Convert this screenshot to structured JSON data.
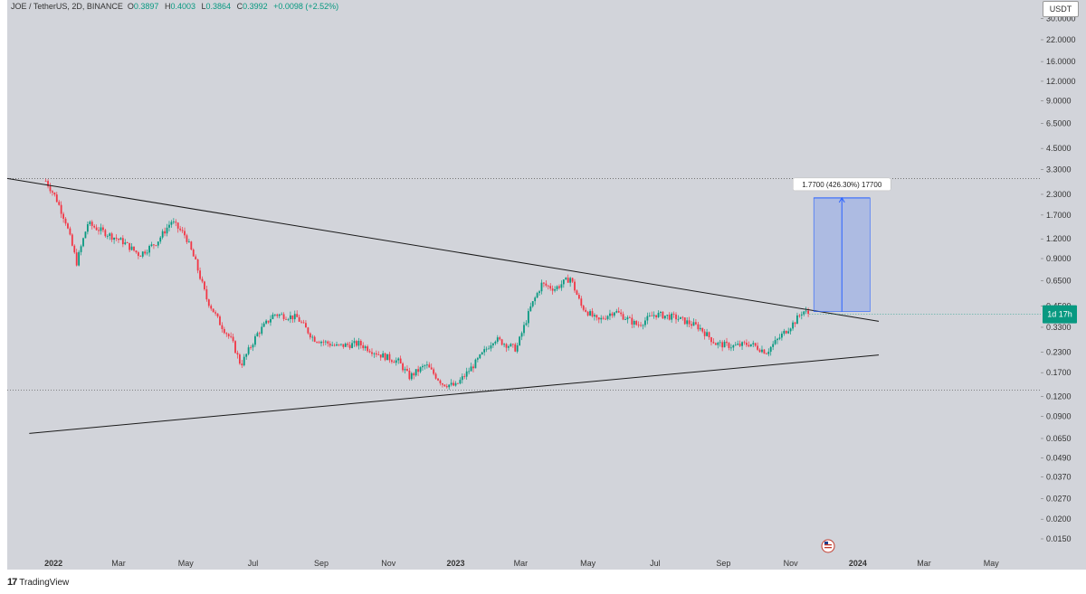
{
  "header": {
    "symbol_label": "JOE / TetherUS, 2D, BINANCE",
    "open_label": "O",
    "open": "0.3897",
    "high_label": "H",
    "high": "0.4003",
    "low_label": "L",
    "low": "0.3864",
    "close_label": "C",
    "close": "0.3992",
    "change": "+0.0098 (+2.52%)",
    "currency": "USDT"
  },
  "colors": {
    "up": "#089981",
    "down": "#f23645",
    "accent": "#2962ff",
    "background": "#d2d4da"
  },
  "countdown": "1d 17h",
  "measure_label": "1.7700 (426.30%) 17700",
  "logo_text": "TradingView",
  "flag_icon": "us-flag-icon",
  "chart_data": {
    "type": "candlestick",
    "title": "JOE / TetherUS, 2D, BINANCE",
    "y_scale": "log",
    "y_ticks": [
      "30.0000",
      "22.0000",
      "16.0000",
      "12.0000",
      "9.0000",
      "6.5000",
      "4.5000",
      "3.3000",
      "2.3000",
      "1.7000",
      "1.2000",
      "0.9000",
      "0.6500",
      "0.4500",
      "0.3300",
      "0.2300",
      "0.1700",
      "0.1200",
      "0.0900",
      "0.0650",
      "0.0490",
      "0.0370",
      "0.0270",
      "0.0200",
      "0.0150"
    ],
    "x_ticks": [
      "2022",
      "Mar",
      "May",
      "Jul",
      "Sep",
      "Nov",
      "2023",
      "Mar",
      "May",
      "Jul",
      "Sep",
      "Nov",
      "2024",
      "Mar",
      "May"
    ],
    "x_range": [
      "2021-11-20",
      "2024-06-15"
    ],
    "price_path": [
      [
        "2021-12-25",
        2.8
      ],
      [
        "2022-01-03",
        2.2
      ],
      [
        "2022-01-12",
        1.55
      ],
      [
        "2022-01-22",
        0.85
      ],
      [
        "2022-02-01",
        1.5
      ],
      [
        "2022-02-18",
        1.3
      ],
      [
        "2022-03-05",
        1.15
      ],
      [
        "2022-03-20",
        0.95
      ],
      [
        "2022-04-05",
        1.15
      ],
      [
        "2022-04-18",
        1.55
      ],
      [
        "2022-05-01",
        1.25
      ],
      [
        "2022-05-10",
        0.85
      ],
      [
        "2022-05-20",
        0.5
      ],
      [
        "2022-06-01",
        0.35
      ],
      [
        "2022-06-12",
        0.27
      ],
      [
        "2022-06-20",
        0.19
      ],
      [
        "2022-07-05",
        0.3
      ],
      [
        "2022-07-20",
        0.4
      ],
      [
        "2022-08-10",
        0.38
      ],
      [
        "2022-08-25",
        0.28
      ],
      [
        "2022-09-15",
        0.25
      ],
      [
        "2022-10-05",
        0.26
      ],
      [
        "2022-10-25",
        0.22
      ],
      [
        "2022-11-10",
        0.2
      ],
      [
        "2022-11-20",
        0.16
      ],
      [
        "2022-12-05",
        0.19
      ],
      [
        "2022-12-20",
        0.145
      ],
      [
        "2023-01-01",
        0.14
      ],
      [
        "2023-01-20",
        0.2
      ],
      [
        "2023-02-05",
        0.28
      ],
      [
        "2023-02-25",
        0.24
      ],
      [
        "2023-03-10",
        0.44
      ],
      [
        "2023-03-20",
        0.62
      ],
      [
        "2023-04-01",
        0.58
      ],
      [
        "2023-04-15",
        0.68
      ],
      [
        "2023-04-25",
        0.45
      ],
      [
        "2023-05-10",
        0.36
      ],
      [
        "2023-05-25",
        0.42
      ],
      [
        "2023-06-15",
        0.34
      ],
      [
        "2023-07-01",
        0.4
      ],
      [
        "2023-07-20",
        0.38
      ],
      [
        "2023-08-10",
        0.33
      ],
      [
        "2023-08-25",
        0.26
      ],
      [
        "2023-09-10",
        0.25
      ],
      [
        "2023-09-25",
        0.26
      ],
      [
        "2023-10-10",
        0.23
      ],
      [
        "2023-10-25",
        0.3
      ],
      [
        "2023-11-05",
        0.36
      ],
      [
        "2023-11-12",
        0.42
      ],
      [
        "2023-11-18",
        0.399
      ]
    ],
    "trendlines": [
      {
        "name": "upper",
        "start": [
          "2021-11-20",
          2.9
        ],
        "end": [
          "2024-01-20",
          0.36
        ]
      },
      {
        "name": "lower",
        "start": [
          "2021-12-10",
          0.07
        ],
        "end": [
          "2024-01-20",
          0.22
        ]
      }
    ],
    "dashed_levels": [
      2.9,
      0.132
    ],
    "last_price": 0.399,
    "measure": {
      "start_date": "2023-11-22",
      "end_date": "2024-01-12",
      "from": 0.415,
      "to": 2.185,
      "change": "1.7700 (426.30%) 17700"
    }
  }
}
